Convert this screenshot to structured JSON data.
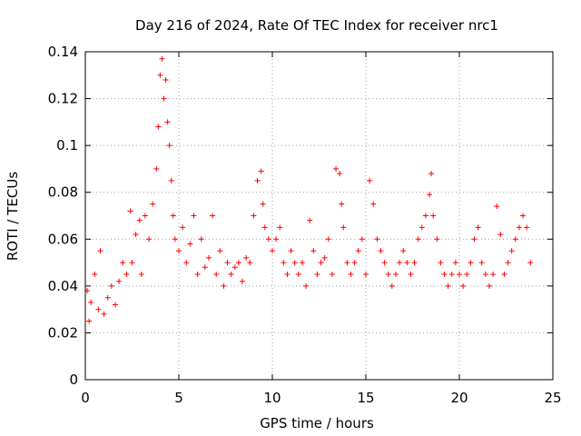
{
  "chart_data": {
    "type": "scatter",
    "title": "Day 216 of 2024, Rate Of TEC Index for receiver nrc1",
    "xlabel": "GPS time / hours",
    "ylabel": "ROTI / TECUs",
    "xlim": [
      0,
      25
    ],
    "ylim": [
      0,
      0.14
    ],
    "xticks": [
      0,
      5,
      10,
      15,
      20,
      25
    ],
    "xtick_labels": [
      "0",
      "5",
      "10",
      "15",
      "20",
      "25"
    ],
    "yticks": [
      0,
      0.02,
      0.04,
      0.06,
      0.08,
      0.1,
      0.12,
      0.14
    ],
    "ytick_labels": [
      "0",
      "0.02",
      "0.04",
      "0.06",
      "0.08",
      "0.1",
      "0.12",
      "0.14"
    ],
    "grid": true,
    "marker": "+",
    "marker_color": "#ff0000",
    "series": [
      {
        "x": [
          0.1,
          0.2,
          0.3,
          0.5,
          0.7,
          0.8,
          1.0,
          1.2,
          1.4,
          1.6,
          1.8,
          2.0,
          2.2,
          2.4,
          2.5,
          2.7,
          2.9,
          3.0,
          3.2,
          3.4,
          3.6,
          3.8,
          3.9,
          4.0,
          4.1,
          4.2,
          4.3,
          4.4,
          4.5,
          4.6,
          4.7,
          4.8,
          5.0,
          5.2,
          5.4,
          5.6,
          5.8,
          6.0,
          6.2,
          6.4,
          6.6,
          6.8,
          7.0,
          7.2,
          7.4,
          7.6,
          7.8,
          8.0,
          8.2,
          8.4,
          8.6,
          8.8,
          9.0,
          9.2,
          9.4,
          9.5,
          9.6,
          9.8,
          10.0,
          10.2,
          10.4,
          10.6,
          10.8,
          11.0,
          11.2,
          11.4,
          11.6,
          11.8,
          12.0,
          12.2,
          12.4,
          12.6,
          12.8,
          13.0,
          13.2,
          13.4,
          13.6,
          13.7,
          13.8,
          14.0,
          14.2,
          14.4,
          14.6,
          14.8,
          15.0,
          15.2,
          15.4,
          15.6,
          15.8,
          16.0,
          16.2,
          16.4,
          16.6,
          16.8,
          17.0,
          17.2,
          17.4,
          17.6,
          17.8,
          18.0,
          18.2,
          18.4,
          18.5,
          18.6,
          18.8,
          19.0,
          19.2,
          19.4,
          19.6,
          19.8,
          20.0,
          20.2,
          20.4,
          20.6,
          20.8,
          21.0,
          21.2,
          21.4,
          21.6,
          21.8,
          22.0,
          22.2,
          22.4,
          22.6,
          22.8,
          23.0,
          23.2,
          23.4,
          23.6,
          23.8
        ],
        "y": [
          0.038,
          0.025,
          0.033,
          0.045,
          0.03,
          0.055,
          0.028,
          0.035,
          0.04,
          0.032,
          0.042,
          0.05,
          0.045,
          0.072,
          0.05,
          0.062,
          0.068,
          0.045,
          0.07,
          0.06,
          0.075,
          0.09,
          0.108,
          0.13,
          0.137,
          0.12,
          0.128,
          0.11,
          0.1,
          0.085,
          0.07,
          0.06,
          0.055,
          0.065,
          0.05,
          0.058,
          0.07,
          0.045,
          0.06,
          0.048,
          0.052,
          0.07,
          0.045,
          0.055,
          0.04,
          0.05,
          0.045,
          0.048,
          0.05,
          0.042,
          0.052,
          0.05,
          0.07,
          0.085,
          0.089,
          0.075,
          0.065,
          0.06,
          0.055,
          0.06,
          0.065,
          0.05,
          0.045,
          0.055,
          0.05,
          0.045,
          0.05,
          0.04,
          0.068,
          0.055,
          0.045,
          0.05,
          0.052,
          0.06,
          0.045,
          0.09,
          0.088,
          0.075,
          0.065,
          0.05,
          0.045,
          0.05,
          0.055,
          0.06,
          0.045,
          0.085,
          0.075,
          0.06,
          0.055,
          0.05,
          0.045,
          0.04,
          0.045,
          0.05,
          0.055,
          0.05,
          0.045,
          0.05,
          0.06,
          0.065,
          0.07,
          0.079,
          0.088,
          0.07,
          0.06,
          0.05,
          0.045,
          0.04,
          0.045,
          0.05,
          0.045,
          0.04,
          0.045,
          0.05,
          0.06,
          0.065,
          0.05,
          0.045,
          0.04,
          0.045,
          0.074,
          0.062,
          0.045,
          0.05,
          0.055,
          0.06,
          0.065,
          0.07,
          0.065,
          0.05
        ]
      }
    ]
  }
}
